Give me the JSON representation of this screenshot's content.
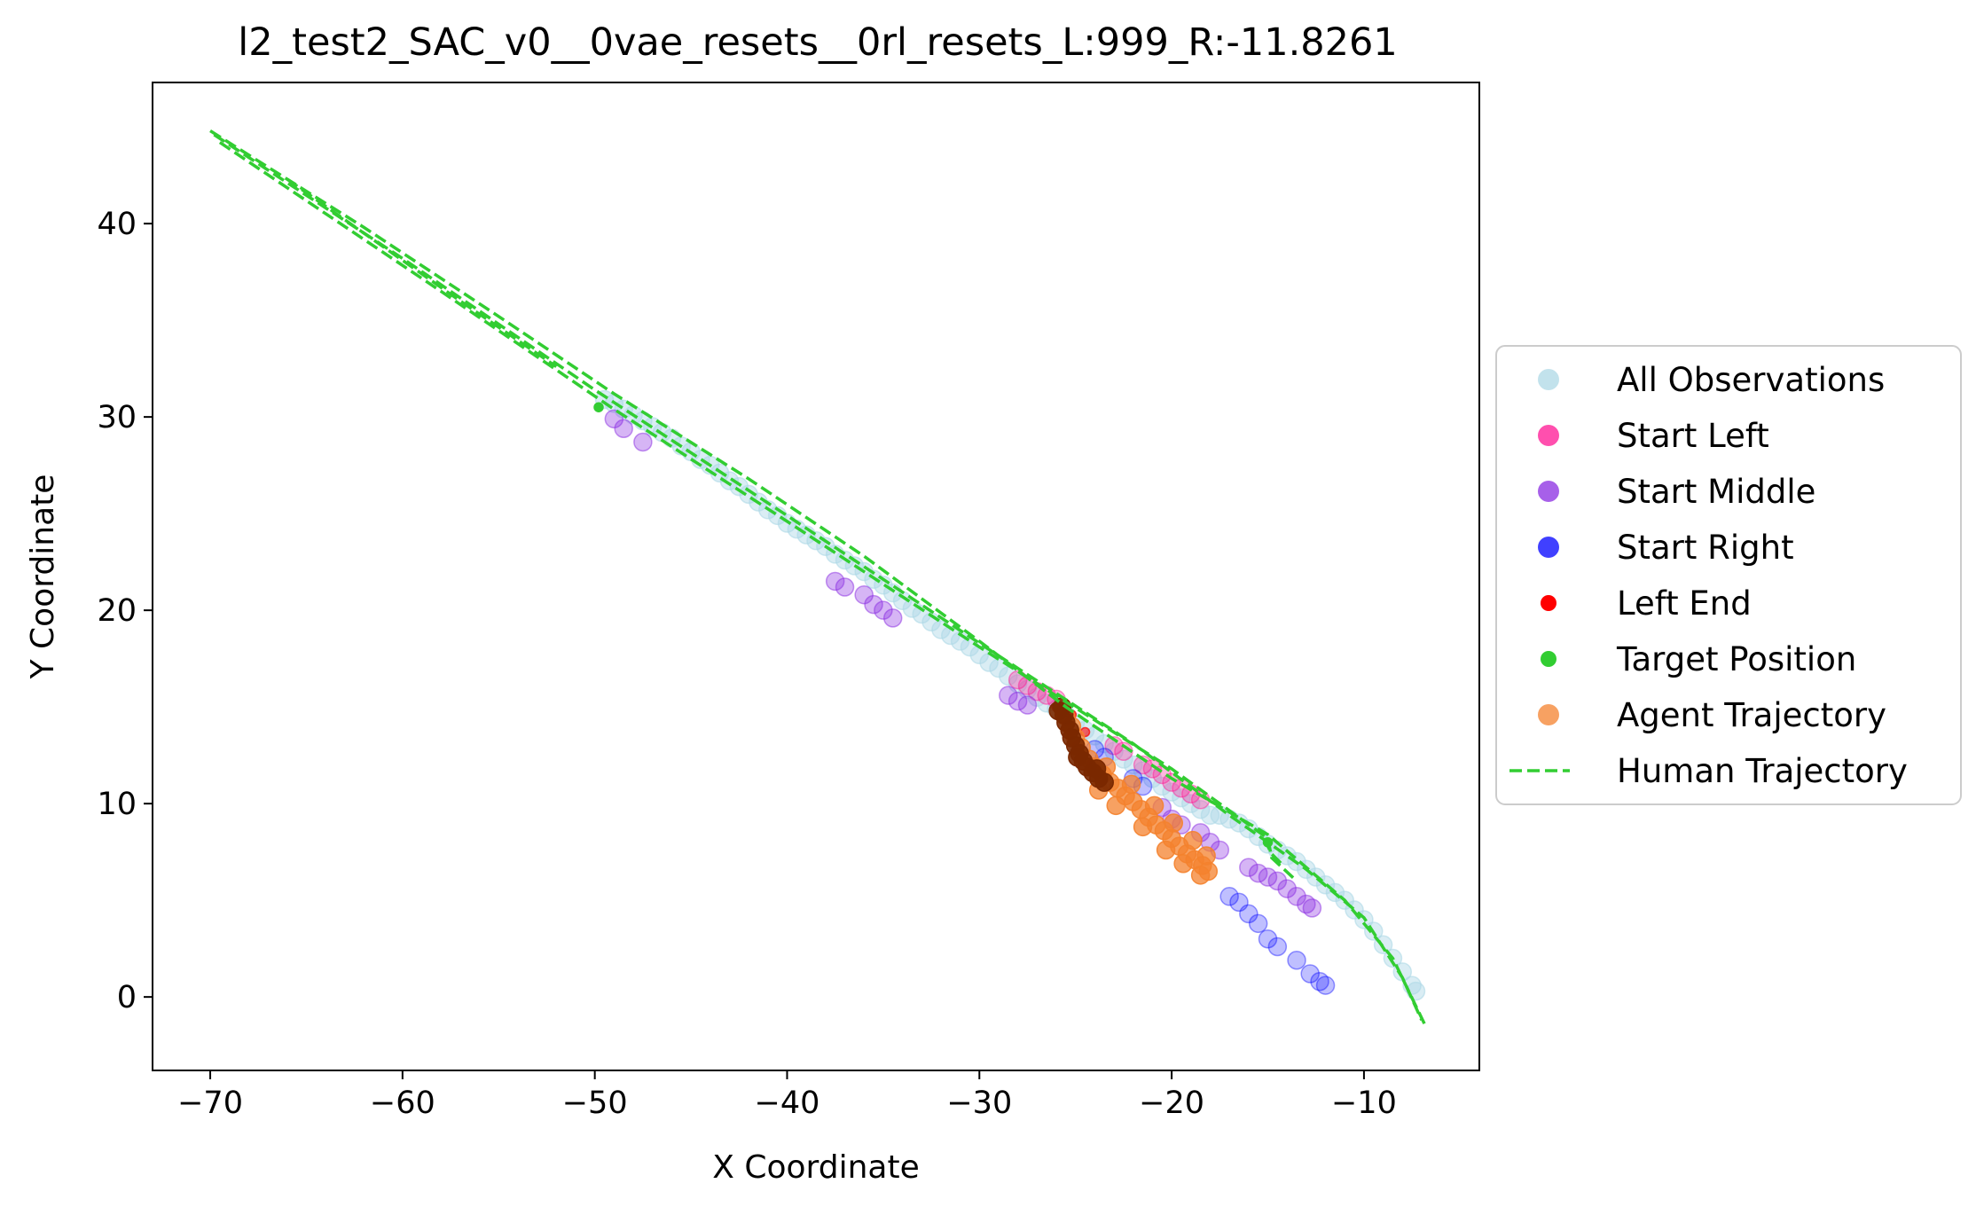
{
  "chart_data": {
    "type": "scatter",
    "title": "l2_test2_SAC_v0__0vae_resets__0rl_resets_L:999_R:-11.8261",
    "xlabel": "X Coordinate",
    "ylabel": "Y Coordinate",
    "xlim": [
      -73,
      -4
    ],
    "ylim": [
      -3.8,
      47.3
    ],
    "xticks": [
      -70,
      -60,
      -50,
      -40,
      -30,
      -20,
      -10
    ],
    "yticks": [
      0,
      10,
      20,
      30,
      40
    ],
    "grid": false,
    "legend_position": "outside-right",
    "series": [
      {
        "name": "All Observations",
        "kind": "scatter",
        "color": "#add8e6",
        "alpha": 0.45,
        "size": "large",
        "points": [
          [
            -49.5,
            30.9
          ],
          [
            -49,
            30.7
          ],
          [
            -48.5,
            30.4
          ],
          [
            -48,
            30.1
          ],
          [
            -47.5,
            29.8
          ],
          [
            -47,
            29.5
          ],
          [
            -46.5,
            29.2
          ],
          [
            -46,
            28.9
          ],
          [
            -45.5,
            28.5
          ],
          [
            -45,
            28.2
          ],
          [
            -44.5,
            27.8
          ],
          [
            -44,
            27.5
          ],
          [
            -43.5,
            27.1
          ],
          [
            -43,
            26.7
          ],
          [
            -42.5,
            26.4
          ],
          [
            -42,
            26
          ],
          [
            -41.5,
            25.6
          ],
          [
            -41,
            25.2
          ],
          [
            -40.5,
            24.9
          ],
          [
            -40,
            24.5
          ],
          [
            -39.5,
            24.2
          ],
          [
            -39,
            23.9
          ],
          [
            -38.5,
            23.6
          ],
          [
            -38,
            23.3
          ],
          [
            -37.5,
            22.9
          ],
          [
            -37,
            22.6
          ],
          [
            -36.5,
            22.3
          ],
          [
            -36,
            22
          ],
          [
            -35.5,
            21.6
          ],
          [
            -35,
            21.3
          ],
          [
            -34.5,
            20.9
          ],
          [
            -34,
            20.5
          ],
          [
            -33.5,
            20.1
          ],
          [
            -33,
            19.8
          ],
          [
            -32.5,
            19.4
          ],
          [
            -32,
            19
          ],
          [
            -31.5,
            18.7
          ],
          [
            -31,
            18.4
          ],
          [
            -30.5,
            18.1
          ],
          [
            -30,
            17.7
          ],
          [
            -29.5,
            17.3
          ],
          [
            -29,
            17
          ],
          [
            -28.5,
            16.6
          ],
          [
            -28,
            16.2
          ],
          [
            -27.5,
            15.9
          ],
          [
            -27,
            15.5
          ],
          [
            -26.5,
            15.2
          ],
          [
            -26,
            14.9
          ],
          [
            -25.5,
            14.6
          ],
          [
            -25,
            14.2
          ],
          [
            -24.5,
            13.8
          ],
          [
            -24,
            13.5
          ],
          [
            -23.5,
            13.1
          ],
          [
            -23,
            12.7
          ],
          [
            -22.5,
            12.3
          ],
          [
            -22,
            12
          ],
          [
            -21.5,
            11.7
          ],
          [
            -21,
            11.3
          ],
          [
            -20.5,
            10.9
          ],
          [
            -20,
            10.6
          ],
          [
            -19.5,
            10.3
          ],
          [
            -19,
            10
          ],
          [
            -18.5,
            9.7
          ],
          [
            -18,
            9.4
          ],
          [
            -17.5,
            9.4
          ],
          [
            -17,
            9.2
          ],
          [
            -16.5,
            9
          ],
          [
            -16,
            8.7
          ],
          [
            -15.5,
            8.3
          ],
          [
            -15,
            7.9
          ],
          [
            -14.5,
            7.6
          ],
          [
            -14,
            7.3
          ],
          [
            -13.5,
            7
          ],
          [
            -13,
            6.6
          ],
          [
            -12.5,
            6.2
          ],
          [
            -12,
            5.8
          ],
          [
            -11.5,
            5.4
          ],
          [
            -11,
            5
          ],
          [
            -10.5,
            4.5
          ],
          [
            -10,
            4
          ],
          [
            -9.5,
            3.4
          ],
          [
            -9,
            2.7
          ],
          [
            -8.5,
            2
          ],
          [
            -8,
            1.3
          ],
          [
            -7.5,
            0.6
          ],
          [
            -7.3,
            0.3
          ]
        ]
      },
      {
        "name": "Start Left",
        "kind": "scatter",
        "color": "#ff1493",
        "alpha": 0.3,
        "size": "large",
        "points": [
          [
            -28,
            16.4
          ],
          [
            -27.5,
            16.1
          ],
          [
            -27,
            15.8
          ],
          [
            -26.5,
            15.6
          ],
          [
            -26,
            15.4
          ],
          [
            -23,
            13
          ],
          [
            -22.5,
            12.7
          ],
          [
            -21.5,
            12
          ],
          [
            -21,
            11.8
          ],
          [
            -20.5,
            11.5
          ],
          [
            -20,
            11.1
          ],
          [
            -19.5,
            10.8
          ],
          [
            -19,
            10.5
          ],
          [
            -18.5,
            10.2
          ]
        ]
      },
      {
        "name": "Start Middle",
        "kind": "scatter",
        "color": "#8a2be2",
        "alpha": 0.35,
        "size": "large",
        "points": [
          [
            -49,
            29.9
          ],
          [
            -48.5,
            29.4
          ],
          [
            -47.5,
            28.7
          ],
          [
            -37.5,
            21.5
          ],
          [
            -37,
            21.2
          ],
          [
            -36,
            20.8
          ],
          [
            -35.5,
            20.3
          ],
          [
            -35,
            20
          ],
          [
            -34.5,
            19.6
          ],
          [
            -28.5,
            15.6
          ],
          [
            -28,
            15.3
          ],
          [
            -27.5,
            15.1
          ],
          [
            -20.5,
            9.8
          ],
          [
            -20,
            9.2
          ],
          [
            -19.5,
            8.9
          ],
          [
            -18.5,
            8.5
          ],
          [
            -18,
            8
          ],
          [
            -17.5,
            7.6
          ],
          [
            -16,
            6.7
          ],
          [
            -15.5,
            6.4
          ],
          [
            -15,
            6.2
          ],
          [
            -14.5,
            6
          ],
          [
            -14,
            5.6
          ],
          [
            -13.5,
            5.2
          ],
          [
            -13,
            4.8
          ],
          [
            -12.7,
            4.6
          ]
        ]
      },
      {
        "name": "Start Right",
        "kind": "scatter",
        "color": "#0000ff",
        "alpha": 0.25,
        "size": "large",
        "points": [
          [
            -17,
            5.2
          ],
          [
            -16.5,
            4.9
          ],
          [
            -16,
            4.3
          ],
          [
            -15.5,
            3.8
          ],
          [
            -15,
            3
          ],
          [
            -14.5,
            2.6
          ],
          [
            -13.5,
            1.9
          ],
          [
            -12.8,
            1.2
          ],
          [
            -12.3,
            0.8
          ],
          [
            -12,
            0.6
          ],
          [
            -24,
            12.8
          ],
          [
            -23.5,
            12.4
          ],
          [
            -22,
            11.3
          ],
          [
            -21.5,
            10.9
          ]
        ]
      },
      {
        "name": "Left End",
        "kind": "scatter",
        "color": "#ff0000",
        "alpha": 0.6,
        "size": "small",
        "points": [
          [
            -26,
            15
          ],
          [
            -25.2,
            14.6
          ],
          [
            -24.5,
            13.7
          ]
        ]
      },
      {
        "name": "Target Position",
        "kind": "scatter",
        "color": "#32cd32",
        "alpha": 1.0,
        "size": "small",
        "points": [
          [
            -49.8,
            30.5
          ],
          [
            -25.5,
            14.8
          ],
          [
            -15,
            8
          ]
        ]
      },
      {
        "name": "Agent Trajectory",
        "kind": "scatter",
        "color": "#f4822e",
        "alpha": 0.75,
        "size": "large",
        "points": [
          [
            -25.5,
            14.5
          ],
          [
            -25.2,
            14
          ],
          [
            -25,
            13.4
          ],
          [
            -24.7,
            12.9
          ],
          [
            -24.3,
            12.3
          ],
          [
            -24,
            11.9
          ],
          [
            -23.6,
            11.5
          ],
          [
            -23.2,
            11.1
          ],
          [
            -22.8,
            10.8
          ],
          [
            -22.4,
            10.4
          ],
          [
            -22,
            10.1
          ],
          [
            -21.6,
            9.7
          ],
          [
            -21.2,
            9.3
          ],
          [
            -20.8,
            8.9
          ],
          [
            -20.4,
            8.6
          ],
          [
            -20,
            8.2
          ],
          [
            -19.6,
            7.8
          ],
          [
            -19.2,
            7.4
          ],
          [
            -18.8,
            7.1
          ],
          [
            -18.4,
            6.8
          ],
          [
            -18.1,
            6.5
          ],
          [
            -23.8,
            10.7
          ],
          [
            -22.9,
            9.9
          ],
          [
            -21.5,
            8.8
          ],
          [
            -20.3,
            7.6
          ],
          [
            -19.4,
            6.9
          ],
          [
            -18.5,
            6.3
          ],
          [
            -23.4,
            11.9
          ],
          [
            -22.1,
            11
          ],
          [
            -20.9,
            9.9
          ],
          [
            -19.9,
            9
          ],
          [
            -18.9,
            8.1
          ],
          [
            -18.2,
            7.3
          ]
        ]
      },
      {
        "name": "",
        "kind": "scatter",
        "color": "#7a2800",
        "alpha": 0.9,
        "size": "large",
        "points": [
          [
            -25.7,
            15
          ],
          [
            -25.6,
            14.6
          ],
          [
            -25.5,
            14.2
          ],
          [
            -25.3,
            13.8
          ],
          [
            -25.2,
            13.4
          ],
          [
            -25,
            13
          ],
          [
            -24.8,
            12.6
          ],
          [
            -24.6,
            12.2
          ],
          [
            -24.4,
            11.9
          ],
          [
            -24.1,
            11.6
          ],
          [
            -23.8,
            11.3
          ],
          [
            -23.5,
            11.1
          ],
          [
            -25.9,
            14.8
          ],
          [
            -24.9,
            12.4
          ],
          [
            -23.9,
            11.8
          ]
        ]
      },
      {
        "name": "Human Trajectory",
        "kind": "line",
        "color": "#32cd32",
        "dash": true,
        "lines": [
          [
            [
              -70,
              44.8
            ],
            [
              -62,
              39.8
            ],
            [
              -55,
              35.2
            ],
            [
              -49,
              31.2
            ],
            [
              -42,
              26.8
            ],
            [
              -36,
              22.8
            ],
            [
              -30,
              18.4
            ],
            [
              -25.5,
              15
            ],
            [
              -20,
              11.3
            ],
            [
              -15,
              8.4
            ],
            [
              -11,
              5
            ],
            [
              -8.5,
              2
            ],
            [
              -6.8,
              -1.5
            ]
          ],
          [
            [
              -69.8,
              44.6
            ],
            [
              -60,
              38.2
            ],
            [
              -50,
              31.4
            ],
            [
              -40,
              24.9
            ],
            [
              -30,
              18.3
            ],
            [
              -22,
              13.1
            ],
            [
              -17,
              9.4
            ],
            [
              -13,
              6.6
            ],
            [
              -10,
              4.1
            ],
            [
              -8,
              1
            ],
            [
              -7,
              -1.2
            ]
          ],
          [
            [
              -69.5,
              44.2
            ],
            [
              -58,
              36.5
            ],
            [
              -49,
              30.4
            ],
            [
              -40,
              24.6
            ],
            [
              -30,
              18.1
            ],
            [
              -20,
              11.8
            ],
            [
              -15,
              8.2
            ],
            [
              -14.8,
              7.2
            ],
            [
              -13.5,
              6
            ]
          ],
          [
            [
              -66,
              42.3
            ],
            [
              -62,
              39.5
            ],
            [
              -57,
              36
            ],
            [
              -52,
              32.6
            ]
          ],
          [
            [
              -15.2,
              8.2
            ],
            [
              -14.8,
              7.4
            ],
            [
              -14.2,
              6.8
            ]
          ]
        ]
      }
    ]
  }
}
